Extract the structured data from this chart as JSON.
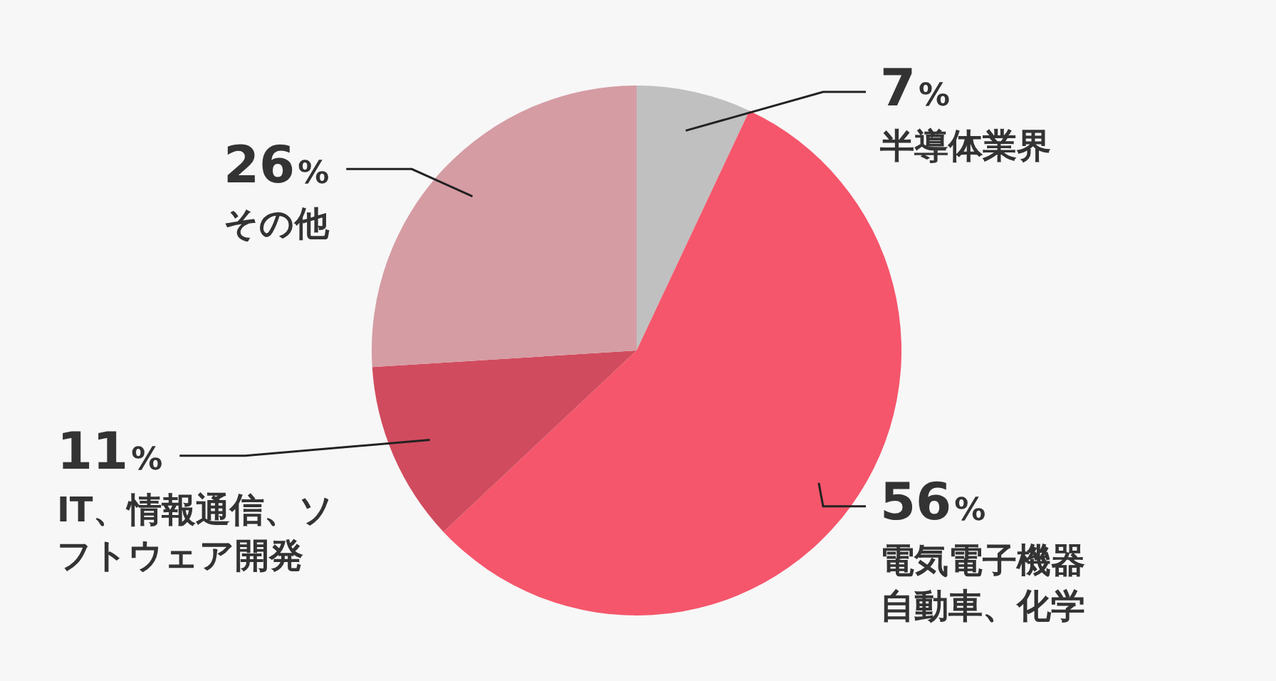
{
  "chart_data": {
    "type": "pie",
    "categories": [
      "半導体業界",
      "電気電子機器自動車、化学",
      "IT、情報通信、ソフトウェア開発",
      "その他"
    ],
    "values": [
      7,
      56,
      11,
      26
    ],
    "colors": [
      "#c0c0c0",
      "#f5566b",
      "#d14b5e",
      "#d59ca3"
    ],
    "value_labels": [
      "7%",
      "56%",
      "11%",
      "26%"
    ],
    "legend": false
  }
}
